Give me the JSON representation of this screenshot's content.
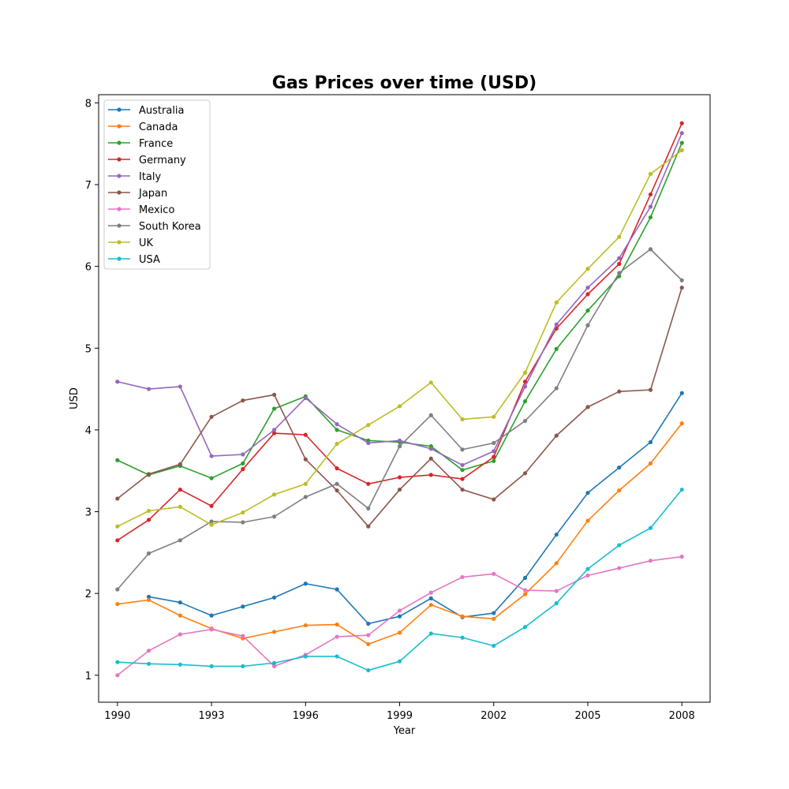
{
  "chart_data": {
    "type": "line",
    "title": "Gas Prices over time (USD)",
    "xlabel": "Year",
    "ylabel": "USD",
    "x": [
      1990,
      1991,
      1992,
      1993,
      1994,
      1995,
      1996,
      1997,
      1998,
      1999,
      2000,
      2001,
      2002,
      2003,
      2004,
      2005,
      2006,
      2007,
      2008
    ],
    "xticks": [
      1990,
      1993,
      1996,
      1999,
      2002,
      2005,
      2008
    ],
    "yticks": [
      1,
      2,
      3,
      4,
      5,
      6,
      7,
      8
    ],
    "xlim": [
      1989.4,
      2008.9
    ],
    "ylim": [
      0.67,
      8.1
    ],
    "legend_position": "upper-left",
    "grid": false,
    "series": [
      {
        "name": "Australia",
        "color": "#1f77b4",
        "values": [
          null,
          1.96,
          1.89,
          1.73,
          1.84,
          1.95,
          2.12,
          2.05,
          1.63,
          1.72,
          1.94,
          1.71,
          1.76,
          2.19,
          2.72,
          3.23,
          3.54,
          3.85,
          4.45
        ]
      },
      {
        "name": "Canada",
        "color": "#ff7f0e",
        "values": [
          1.87,
          1.92,
          1.73,
          1.57,
          1.45,
          1.53,
          1.61,
          1.62,
          1.38,
          1.52,
          1.86,
          1.72,
          1.69,
          1.99,
          2.37,
          2.89,
          3.26,
          3.59,
          4.08
        ]
      },
      {
        "name": "France",
        "color": "#2ca02c",
        "values": [
          3.63,
          3.45,
          3.56,
          3.41,
          3.59,
          4.26,
          4.41,
          4.0,
          3.87,
          3.85,
          3.8,
          3.51,
          3.62,
          4.35,
          4.99,
          5.46,
          5.88,
          6.6,
          7.51
        ]
      },
      {
        "name": "Germany",
        "color": "#d62728",
        "values": [
          2.65,
          2.9,
          3.27,
          3.07,
          3.52,
          3.96,
          3.94,
          3.53,
          3.34,
          3.42,
          3.45,
          3.4,
          3.67,
          4.59,
          5.24,
          5.66,
          6.03,
          6.88,
          7.75
        ]
      },
      {
        "name": "Italy",
        "color": "#9467bd",
        "values": [
          4.59,
          4.5,
          4.53,
          3.68,
          3.7,
          4.0,
          4.39,
          4.07,
          3.84,
          3.87,
          3.77,
          3.57,
          3.74,
          4.53,
          5.29,
          5.74,
          6.1,
          6.73,
          7.63
        ]
      },
      {
        "name": "Japan",
        "color": "#8c564b",
        "values": [
          3.16,
          3.46,
          3.58,
          4.16,
          4.36,
          4.43,
          3.64,
          3.26,
          2.82,
          3.27,
          3.65,
          3.27,
          3.15,
          3.47,
          3.93,
          4.28,
          4.47,
          4.49,
          5.74
        ]
      },
      {
        "name": "Mexico",
        "color": "#e377c2",
        "values": [
          1.0,
          1.3,
          1.5,
          1.56,
          1.48,
          1.11,
          1.25,
          1.47,
          1.49,
          1.79,
          2.01,
          2.2,
          2.24,
          2.04,
          2.03,
          2.22,
          2.31,
          2.4,
          2.45
        ]
      },
      {
        "name": "South Korea",
        "color": "#7f7f7f",
        "values": [
          2.05,
          2.49,
          2.65,
          2.88,
          2.87,
          2.94,
          3.18,
          3.34,
          3.04,
          3.8,
          4.18,
          3.76,
          3.84,
          4.11,
          4.51,
          5.28,
          5.92,
          6.21,
          5.83
        ]
      },
      {
        "name": "UK",
        "color": "#bcbd22",
        "values": [
          2.82,
          3.01,
          3.06,
          2.84,
          2.99,
          3.21,
          3.34,
          3.83,
          4.06,
          4.29,
          4.58,
          4.13,
          4.16,
          4.7,
          5.56,
          5.97,
          6.36,
          7.13,
          7.42
        ]
      },
      {
        "name": "USA",
        "color": "#17becf",
        "values": [
          1.16,
          1.14,
          1.13,
          1.11,
          1.11,
          1.15,
          1.23,
          1.23,
          1.06,
          1.17,
          1.51,
          1.46,
          1.36,
          1.59,
          1.88,
          2.3,
          2.59,
          2.8,
          3.27
        ]
      }
    ]
  }
}
